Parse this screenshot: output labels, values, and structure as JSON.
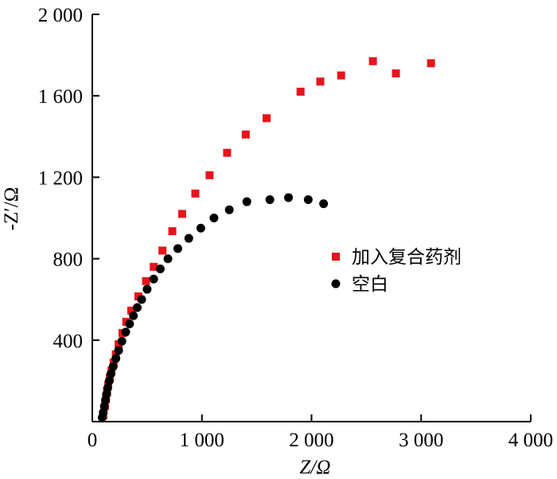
{
  "chart_data": {
    "type": "scatter",
    "title": "",
    "xlabel": "Z/Ω",
    "ylabel": "-Z′/Ω",
    "xlim": [
      0,
      4000
    ],
    "ylim": [
      0,
      2000
    ],
    "x_ticks": [
      0,
      1000,
      2000,
      3000,
      4000
    ],
    "x_tick_labels": [
      "0",
      "1 000",
      "2 000",
      "3 000",
      "4 000"
    ],
    "y_ticks": [
      400,
      800,
      1200,
      1600,
      2000
    ],
    "y_tick_labels": [
      "400",
      "800",
      "1 200",
      "1 600",
      "2 000"
    ],
    "grid": false,
    "legend_position": "right-middle",
    "series": [
      {
        "name": "加入复合药剂",
        "marker": "square",
        "color": "#e8141c",
        "points": [
          [
            100,
            30
          ],
          [
            115,
            75
          ],
          [
            125,
            110
          ],
          [
            135,
            145
          ],
          [
            145,
            180
          ],
          [
            160,
            215
          ],
          [
            175,
            250
          ],
          [
            195,
            290
          ],
          [
            215,
            330
          ],
          [
            240,
            380
          ],
          [
            275,
            435
          ],
          [
            310,
            490
          ],
          [
            355,
            545
          ],
          [
            420,
            615
          ],
          [
            490,
            690
          ],
          [
            560,
            760
          ],
          [
            640,
            840
          ],
          [
            730,
            935
          ],
          [
            820,
            1020
          ],
          [
            940,
            1120
          ],
          [
            1070,
            1210
          ],
          [
            1230,
            1320
          ],
          [
            1400,
            1410
          ],
          [
            1590,
            1490
          ],
          [
            1900,
            1620
          ],
          [
            2080,
            1670
          ],
          [
            2270,
            1700
          ],
          [
            2560,
            1770
          ],
          [
            2770,
            1710
          ],
          [
            3090,
            1760
          ]
        ]
      },
      {
        "name": "空白",
        "marker": "circle",
        "color": "#000000",
        "points": [
          [
            90,
            20
          ],
          [
            100,
            45
          ],
          [
            110,
            75
          ],
          [
            120,
            105
          ],
          [
            130,
            135
          ],
          [
            140,
            165
          ],
          [
            155,
            200
          ],
          [
            170,
            235
          ],
          [
            190,
            270
          ],
          [
            215,
            310
          ],
          [
            240,
            350
          ],
          [
            270,
            395
          ],
          [
            305,
            440
          ],
          [
            340,
            480
          ],
          [
            375,
            520
          ],
          [
            410,
            560
          ],
          [
            450,
            600
          ],
          [
            500,
            650
          ],
          [
            560,
            700
          ],
          [
            620,
            750
          ],
          [
            690,
            800
          ],
          [
            780,
            850
          ],
          [
            880,
            900
          ],
          [
            990,
            950
          ],
          [
            1110,
            1000
          ],
          [
            1250,
            1040
          ],
          [
            1410,
            1080
          ],
          [
            1620,
            1090
          ],
          [
            1790,
            1100
          ],
          [
            1970,
            1090
          ],
          [
            2110,
            1070
          ]
        ]
      }
    ]
  }
}
